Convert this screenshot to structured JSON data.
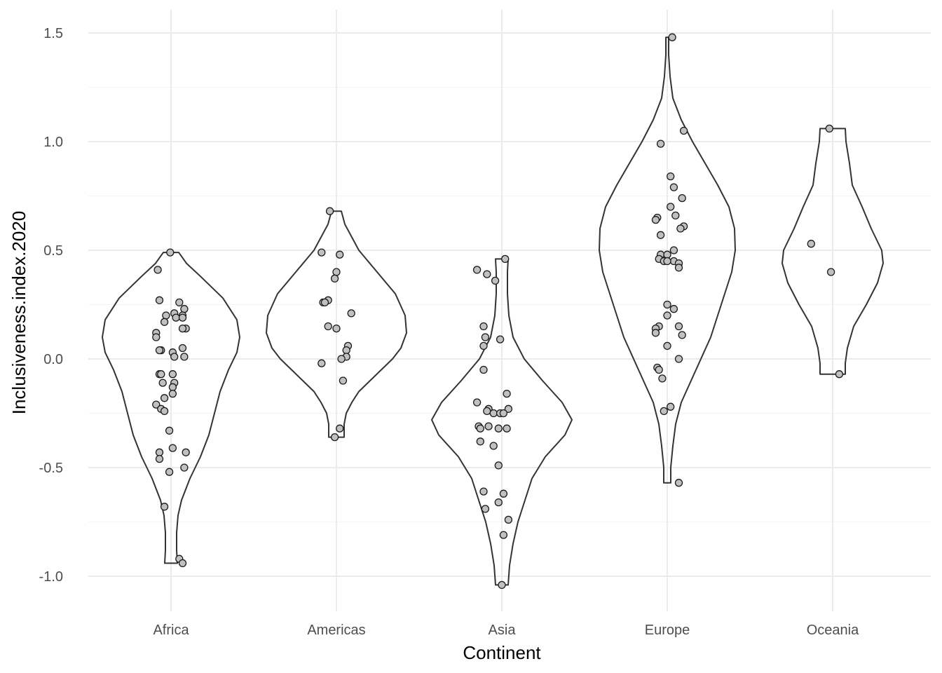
{
  "chart_data": {
    "type": "violin",
    "xlabel": "Continent",
    "ylabel": "Inclusiveness.index.2020",
    "categories": [
      "Africa",
      "Americas",
      "Asia",
      "Europe",
      "Oceania"
    ],
    "ylim": [
      -1.16,
      1.61
    ],
    "yticks": [
      -1.0,
      -0.5,
      0.0,
      0.5,
      1.0,
      1.5
    ],
    "ytick_labels": [
      "-1.0",
      "-0.5",
      "0.0",
      "0.5",
      "1.0",
      "1.5"
    ],
    "grid": true,
    "legend": "none",
    "colors": {
      "point_fill": "#c0c0c0",
      "point_stroke": "#1a1a1a",
      "violin_stroke": "#333333",
      "grid": "#ebebeb"
    },
    "series": [
      {
        "category": "Africa",
        "points": [
          {
            "dx": -0.005,
            "y": 0.49
          },
          {
            "dx": -0.08,
            "y": 0.41
          },
          {
            "dx": -0.07,
            "y": 0.27
          },
          {
            "dx": 0.05,
            "y": 0.26
          },
          {
            "dx": 0.08,
            "y": 0.23
          },
          {
            "dx": 0.02,
            "y": 0.21
          },
          {
            "dx": 0.07,
            "y": 0.2
          },
          {
            "dx": -0.03,
            "y": 0.2
          },
          {
            "dx": 0.03,
            "y": 0.19
          },
          {
            "dx": 0.07,
            "y": 0.19
          },
          {
            "dx": -0.04,
            "y": 0.17
          },
          {
            "dx": 0.09,
            "y": 0.14
          },
          {
            "dx": 0.07,
            "y": 0.14
          },
          {
            "dx": -0.09,
            "y": 0.12
          },
          {
            "dx": -0.09,
            "y": 0.1
          },
          {
            "dx": 0.07,
            "y": 0.05
          },
          {
            "dx": -0.06,
            "y": 0.04
          },
          {
            "dx": -0.07,
            "y": 0.04
          },
          {
            "dx": 0.01,
            "y": 0.03
          },
          {
            "dx": 0.08,
            "y": 0.01
          },
          {
            "dx": 0.02,
            "y": 0.01
          },
          {
            "dx": -0.07,
            "y": -0.07
          },
          {
            "dx": -0.06,
            "y": -0.07
          },
          {
            "dx": 0.01,
            "y": -0.07
          },
          {
            "dx": -0.05,
            "y": -0.11
          },
          {
            "dx": 0.02,
            "y": -0.11
          },
          {
            "dx": 0.01,
            "y": -0.13
          },
          {
            "dx": 0.01,
            "y": -0.16
          },
          {
            "dx": -0.04,
            "y": -0.18
          },
          {
            "dx": -0.09,
            "y": -0.21
          },
          {
            "dx": -0.06,
            "y": -0.23
          },
          {
            "dx": -0.04,
            "y": -0.24
          },
          {
            "dx": -0.01,
            "y": -0.33
          },
          {
            "dx": 0.01,
            "y": -0.41
          },
          {
            "dx": -0.07,
            "y": -0.43
          },
          {
            "dx": 0.09,
            "y": -0.43
          },
          {
            "dx": -0.07,
            "y": -0.46
          },
          {
            "dx": 0.08,
            "y": -0.5
          },
          {
            "dx": -0.01,
            "y": -0.52
          },
          {
            "dx": -0.04,
            "y": -0.68
          },
          {
            "dx": 0.05,
            "y": -0.92
          },
          {
            "dx": 0.07,
            "y": -0.94
          }
        ],
        "density": [
          [
            0.49,
            0.11
          ],
          [
            0.44,
            0.22
          ],
          [
            0.38,
            0.42
          ],
          [
            0.28,
            0.74
          ],
          [
            0.18,
            0.94
          ],
          [
            0.1,
            0.98
          ],
          [
            0.03,
            0.94
          ],
          [
            -0.05,
            0.82
          ],
          [
            -0.15,
            0.7
          ],
          [
            -0.25,
            0.62
          ],
          [
            -0.35,
            0.54
          ],
          [
            -0.45,
            0.42
          ],
          [
            -0.55,
            0.27
          ],
          [
            -0.65,
            0.15
          ],
          [
            -0.72,
            0.1
          ],
          [
            -0.8,
            0.08
          ],
          [
            -0.88,
            0.08
          ],
          [
            -0.94,
            0.09
          ]
        ]
      },
      {
        "category": "Americas",
        "points": [
          {
            "dx": -0.04,
            "y": 0.68
          },
          {
            "dx": -0.09,
            "y": 0.49
          },
          {
            "dx": 0.02,
            "y": 0.48
          },
          {
            "dx": 0.0,
            "y": 0.4
          },
          {
            "dx": -0.01,
            "y": 0.37
          },
          {
            "dx": -0.05,
            "y": 0.27
          },
          {
            "dx": -0.08,
            "y": 0.26
          },
          {
            "dx": -0.07,
            "y": 0.26
          },
          {
            "dx": 0.09,
            "y": 0.21
          },
          {
            "dx": -0.05,
            "y": 0.15
          },
          {
            "dx": 0.0,
            "y": 0.14
          },
          {
            "dx": 0.07,
            "y": 0.06
          },
          {
            "dx": 0.06,
            "y": 0.04
          },
          {
            "dx": 0.06,
            "y": 0.01
          },
          {
            "dx": 0.03,
            "y": 0.0
          },
          {
            "dx": -0.09,
            "y": -0.02
          },
          {
            "dx": 0.04,
            "y": -0.1
          },
          {
            "dx": 0.02,
            "y": -0.32
          },
          {
            "dx": -0.01,
            "y": -0.36
          }
        ],
        "density": [
          [
            0.68,
            0.07
          ],
          [
            0.62,
            0.12
          ],
          [
            0.5,
            0.32
          ],
          [
            0.4,
            0.58
          ],
          [
            0.3,
            0.84
          ],
          [
            0.2,
            0.98
          ],
          [
            0.12,
            1.0
          ],
          [
            0.05,
            0.92
          ],
          [
            0.0,
            0.8
          ],
          [
            -0.05,
            0.64
          ],
          [
            -0.1,
            0.48
          ],
          [
            -0.15,
            0.32
          ],
          [
            -0.2,
            0.22
          ],
          [
            -0.25,
            0.14
          ],
          [
            -0.3,
            0.11
          ],
          [
            -0.36,
            0.11
          ]
        ]
      },
      {
        "category": "Asia",
        "points": [
          {
            "dx": 0.02,
            "y": 0.46
          },
          {
            "dx": -0.15,
            "y": 0.41
          },
          {
            "dx": -0.09,
            "y": 0.39
          },
          {
            "dx": -0.04,
            "y": 0.36
          },
          {
            "dx": -0.11,
            "y": 0.15
          },
          {
            "dx": -0.1,
            "y": 0.1
          },
          {
            "dx": -0.01,
            "y": 0.09
          },
          {
            "dx": -0.11,
            "y": 0.06
          },
          {
            "dx": -0.11,
            "y": -0.05
          },
          {
            "dx": -0.15,
            "y": -0.2
          },
          {
            "dx": 0.03,
            "y": -0.16
          },
          {
            "dx": -0.08,
            "y": -0.23
          },
          {
            "dx": 0.04,
            "y": -0.23
          },
          {
            "dx": -0.09,
            "y": -0.24
          },
          {
            "dx": -0.05,
            "y": -0.25
          },
          {
            "dx": -0.01,
            "y": -0.25
          },
          {
            "dx": 0.01,
            "y": -0.25
          },
          {
            "dx": -0.14,
            "y": -0.31
          },
          {
            "dx": -0.13,
            "y": -0.32
          },
          {
            "dx": -0.08,
            "y": -0.31
          },
          {
            "dx": -0.02,
            "y": -0.32
          },
          {
            "dx": 0.03,
            "y": -0.32
          },
          {
            "dx": -0.13,
            "y": -0.38
          },
          {
            "dx": -0.05,
            "y": -0.4
          },
          {
            "dx": -0.02,
            "y": -0.49
          },
          {
            "dx": -0.11,
            "y": -0.61
          },
          {
            "dx": 0.01,
            "y": -0.62
          },
          {
            "dx": -0.1,
            "y": -0.69
          },
          {
            "dx": -0.02,
            "y": -0.66
          },
          {
            "dx": 0.04,
            "y": -0.74
          },
          {
            "dx": 0.01,
            "y": -0.81
          },
          {
            "dx": 0.0,
            "y": -1.04
          }
        ],
        "density": [
          [
            0.46,
            0.09
          ],
          [
            0.4,
            0.08
          ],
          [
            0.3,
            0.08
          ],
          [
            0.2,
            0.1
          ],
          [
            0.1,
            0.16
          ],
          [
            0.0,
            0.32
          ],
          [
            -0.1,
            0.58
          ],
          [
            -0.2,
            0.86
          ],
          [
            -0.28,
            1.0
          ],
          [
            -0.35,
            0.9
          ],
          [
            -0.45,
            0.62
          ],
          [
            -0.55,
            0.43
          ],
          [
            -0.65,
            0.33
          ],
          [
            -0.75,
            0.23
          ],
          [
            -0.85,
            0.16
          ],
          [
            -0.95,
            0.11
          ],
          [
            -1.04,
            0.09
          ]
        ]
      },
      {
        "category": "Europe",
        "points": [
          {
            "dx": 0.03,
            "y": 1.48
          },
          {
            "dx": 0.1,
            "y": 1.05
          },
          {
            "dx": -0.04,
            "y": 0.99
          },
          {
            "dx": 0.02,
            "y": 0.84
          },
          {
            "dx": 0.04,
            "y": 0.79
          },
          {
            "dx": 0.09,
            "y": 0.74
          },
          {
            "dx": 0.02,
            "y": 0.7
          },
          {
            "dx": 0.05,
            "y": 0.66
          },
          {
            "dx": -0.06,
            "y": 0.65
          },
          {
            "dx": -0.07,
            "y": 0.64
          },
          {
            "dx": 0.1,
            "y": 0.61
          },
          {
            "dx": 0.08,
            "y": 0.6
          },
          {
            "dx": -0.04,
            "y": 0.57
          },
          {
            "dx": 0.04,
            "y": 0.5
          },
          {
            "dx": -0.04,
            "y": 0.48
          },
          {
            "dx": 0.0,
            "y": 0.48
          },
          {
            "dx": -0.05,
            "y": 0.46
          },
          {
            "dx": -0.02,
            "y": 0.45
          },
          {
            "dx": 0.04,
            "y": 0.45
          },
          {
            "dx": 0.0,
            "y": 0.45
          },
          {
            "dx": 0.07,
            "y": 0.44
          },
          {
            "dx": 0.07,
            "y": 0.42
          },
          {
            "dx": 0.0,
            "y": 0.25
          },
          {
            "dx": 0.04,
            "y": 0.23
          },
          {
            "dx": 0.0,
            "y": 0.2
          },
          {
            "dx": 0.07,
            "y": 0.15
          },
          {
            "dx": -0.05,
            "y": 0.15
          },
          {
            "dx": -0.07,
            "y": 0.14
          },
          {
            "dx": -0.07,
            "y": 0.12
          },
          {
            "dx": 0.09,
            "y": 0.11
          },
          {
            "dx": 0.0,
            "y": 0.06
          },
          {
            "dx": 0.07,
            "y": 0.0
          },
          {
            "dx": -0.06,
            "y": -0.04
          },
          {
            "dx": -0.05,
            "y": -0.05
          },
          {
            "dx": -0.03,
            "y": -0.09
          },
          {
            "dx": 0.02,
            "y": -0.22
          },
          {
            "dx": -0.02,
            "y": -0.24
          },
          {
            "dx": 0.07,
            "y": -0.57
          }
        ],
        "density": [
          [
            1.48,
            0.02
          ],
          [
            1.4,
            0.02
          ],
          [
            1.3,
            0.04
          ],
          [
            1.2,
            0.08
          ],
          [
            1.1,
            0.2
          ],
          [
            1.0,
            0.36
          ],
          [
            0.9,
            0.54
          ],
          [
            0.8,
            0.72
          ],
          [
            0.7,
            0.88
          ],
          [
            0.6,
            0.96
          ],
          [
            0.5,
            0.97
          ],
          [
            0.4,
            0.92
          ],
          [
            0.3,
            0.82
          ],
          [
            0.2,
            0.72
          ],
          [
            0.1,
            0.62
          ],
          [
            0.0,
            0.48
          ],
          [
            -0.1,
            0.34
          ],
          [
            -0.2,
            0.2
          ],
          [
            -0.3,
            0.12
          ],
          [
            -0.4,
            0.08
          ],
          [
            -0.5,
            0.05
          ],
          [
            -0.57,
            0.05
          ]
        ]
      },
      {
        "category": "Oceania",
        "points": [
          {
            "dx": -0.02,
            "y": 1.06
          },
          {
            "dx": -0.13,
            "y": 0.53
          },
          {
            "dx": -0.01,
            "y": 0.4
          },
          {
            "dx": 0.04,
            "y": -0.07
          }
        ],
        "density": [
          [
            1.06,
            0.18
          ],
          [
            1.0,
            0.19
          ],
          [
            0.9,
            0.24
          ],
          [
            0.8,
            0.28
          ],
          [
            0.7,
            0.42
          ],
          [
            0.6,
            0.55
          ],
          [
            0.5,
            0.7
          ],
          [
            0.44,
            0.72
          ],
          [
            0.35,
            0.64
          ],
          [
            0.25,
            0.48
          ],
          [
            0.15,
            0.3
          ],
          [
            0.05,
            0.21
          ],
          [
            -0.02,
            0.18
          ],
          [
            -0.07,
            0.18
          ]
        ]
      }
    ]
  }
}
